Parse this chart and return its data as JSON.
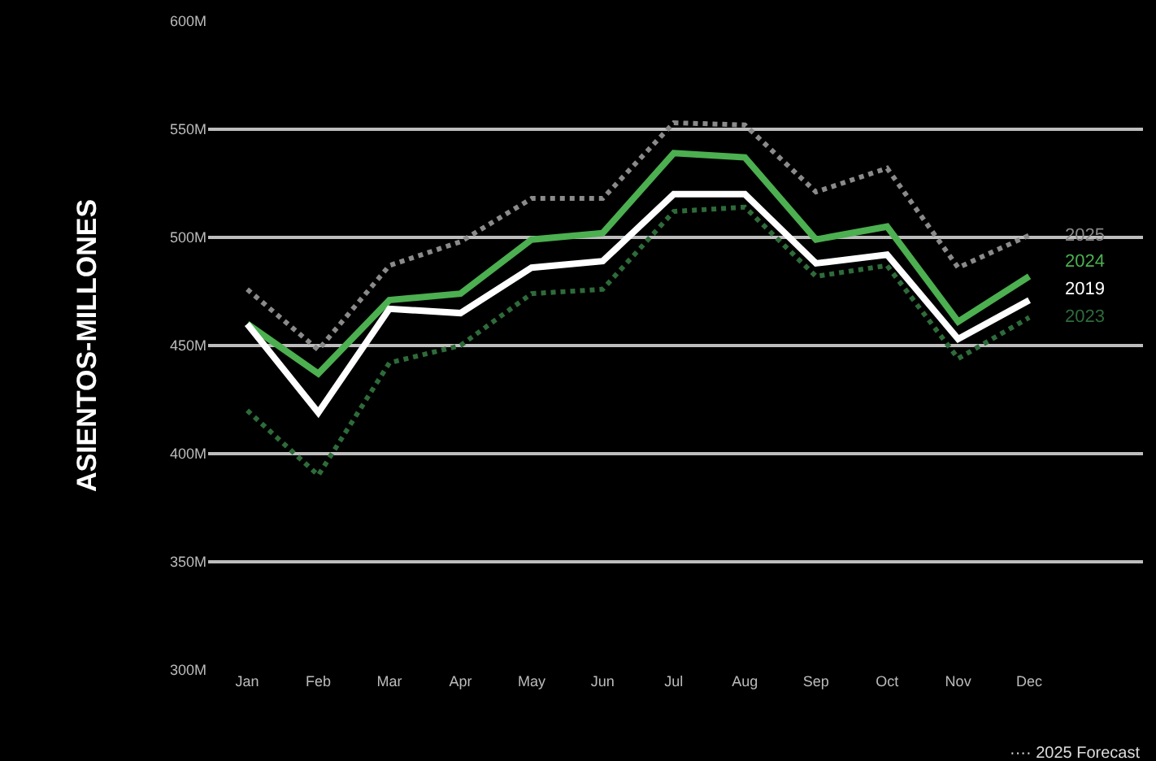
{
  "chart_data": {
    "type": "line",
    "ylabel": "ASIENTOS-MILLONES",
    "categories": [
      "Jan",
      "Feb",
      "Mar",
      "Apr",
      "May",
      "Jun",
      "Jul",
      "Aug",
      "Sep",
      "Oct",
      "Nov",
      "Dec"
    ],
    "series": [
      {
        "name": "2025",
        "color": "#8a8a8a",
        "line_style": "dotted",
        "values": [
          476,
          448,
          487,
          498,
          518,
          518,
          553,
          552,
          521,
          532,
          486,
          501
        ]
      },
      {
        "name": "2024",
        "color": "#4caf50",
        "line_style": "solid",
        "values": [
          460,
          437,
          471,
          474,
          499,
          502,
          539,
          537,
          499,
          505,
          461,
          482
        ]
      },
      {
        "name": "2019",
        "color": "#ffffff",
        "line_style": "solid",
        "values": [
          460,
          419,
          467,
          465,
          486,
          489,
          520,
          520,
          488,
          492,
          453,
          471
        ]
      },
      {
        "name": "2023",
        "color": "#2e6b3a",
        "line_style": "dotted",
        "values": [
          420,
          390,
          442,
          450,
          474,
          476,
          512,
          514,
          482,
          487,
          444,
          463
        ]
      }
    ],
    "ylim": [
      300,
      600
    ],
    "yticks": [
      {
        "value": 300,
        "label": "300M"
      },
      {
        "value": 350,
        "label": "350M"
      },
      {
        "value": 400,
        "label": "400M"
      },
      {
        "value": 450,
        "label": "450M"
      },
      {
        "value": 500,
        "label": "500M"
      },
      {
        "value": 550,
        "label": "550M"
      },
      {
        "value": 600,
        "label": "600M"
      }
    ],
    "grid": "y",
    "legend": false,
    "marker": "none",
    "annotations": [
      "···· 2025 Forecast"
    ]
  }
}
